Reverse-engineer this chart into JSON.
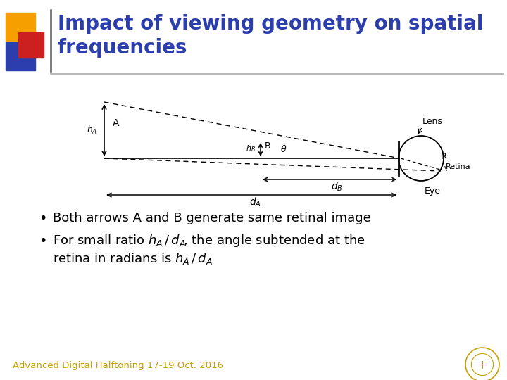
{
  "title_line1": "Impact of viewing geometry on spatial",
  "title_line2": "frequencies",
  "title_color": "#2B3EAC",
  "title_fontsize": 20,
  "bg_color": "#FFFFFF",
  "bullet1": "Both arrows A and B generate same retinal image",
  "bullet2_pre": "For small ratio ",
  "bullet2_mid": ", the angle subtended at the",
  "bullet2_line2_pre": "retina in radians is ",
  "footer_text": "Advanced Digital Halftoning 17-19 Oct. 2016",
  "footer_color": "#C8A000",
  "bullet_color": "#000000",
  "bullet_fontsize": 13
}
